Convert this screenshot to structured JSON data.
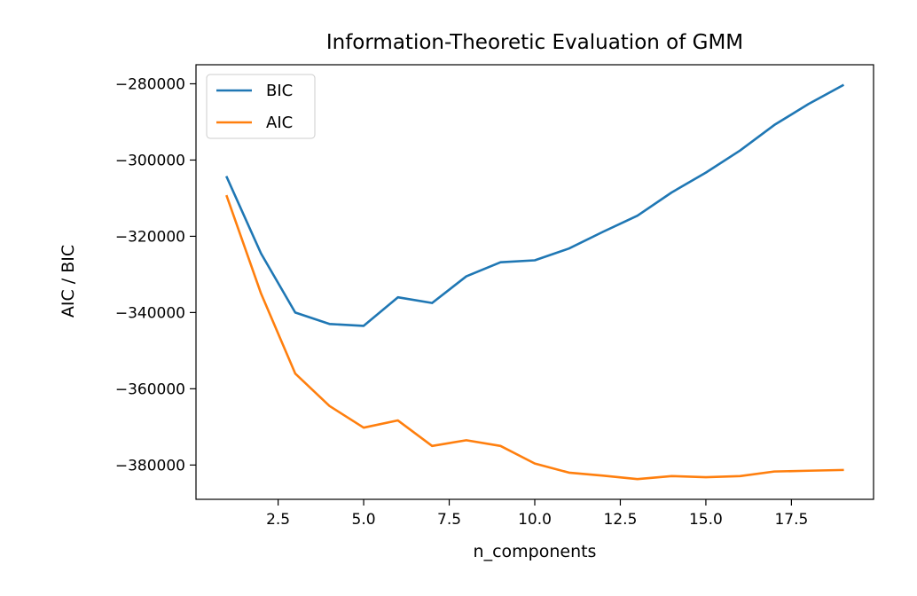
{
  "chart_data": {
    "type": "line",
    "title": "Information-Theoretic Evaluation of GMM",
    "xlabel": "n_components",
    "ylabel": "AIC / BIC",
    "xlim": [
      0.1,
      19.9
    ],
    "ylim": [
      -389000,
      -275000
    ],
    "x_ticks": [
      2.5,
      5.0,
      7.5,
      10.0,
      12.5,
      15.0,
      17.5
    ],
    "x_tick_labels": [
      "2.5",
      "5.0",
      "7.5",
      "10.0",
      "12.5",
      "15.0",
      "17.5"
    ],
    "y_ticks": [
      -380000,
      -360000,
      -340000,
      -320000,
      -300000,
      -280000
    ],
    "y_tick_labels": [
      "−380000",
      "−360000",
      "−340000",
      "−320000",
      "−300000",
      "−280000"
    ],
    "grid": false,
    "legend_position": "top-left",
    "x": [
      1,
      2,
      3,
      4,
      5,
      6,
      7,
      8,
      9,
      10,
      11,
      12,
      13,
      14,
      15,
      16,
      17,
      18,
      19
    ],
    "series": [
      {
        "name": "BIC",
        "color": "#1f77b4",
        "values": [
          -304500,
          -324500,
          -340000,
          -343000,
          -343500,
          -336000,
          -337500,
          -330500,
          -326800,
          -326300,
          -323200,
          -318800,
          -314600,
          -308500,
          -303300,
          -297500,
          -290800,
          -285300,
          -280400
        ]
      },
      {
        "name": "AIC",
        "color": "#ff7f0e",
        "values": [
          -309500,
          -335000,
          -356000,
          -364500,
          -370200,
          -368300,
          -375000,
          -373500,
          -375000,
          -379600,
          -382000,
          -382800,
          -383700,
          -382900,
          -383200,
          -382900,
          -381700,
          -381500,
          -381300
        ]
      }
    ]
  }
}
